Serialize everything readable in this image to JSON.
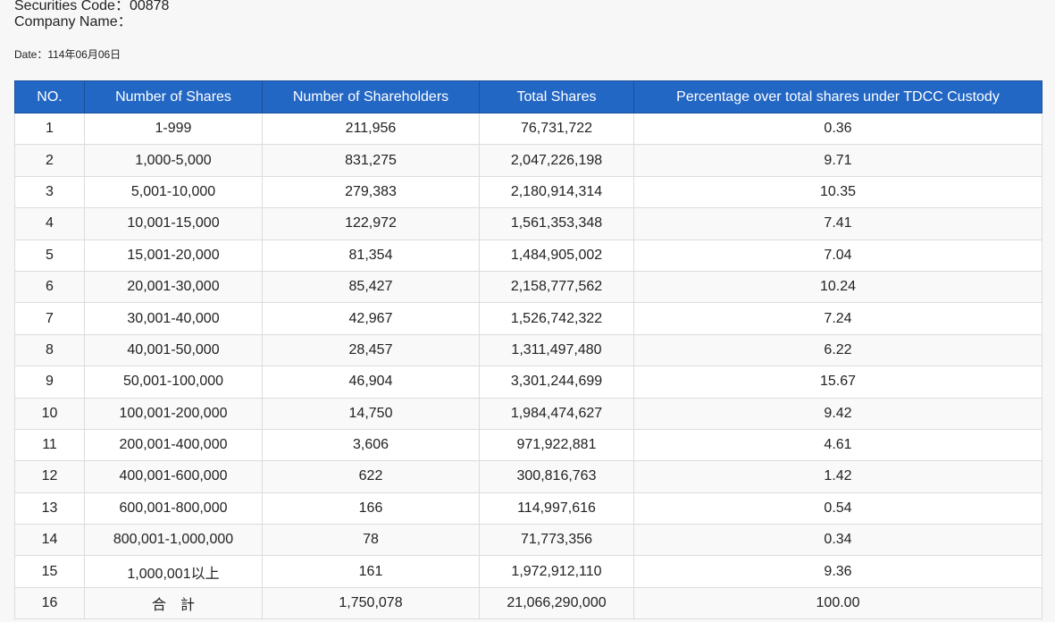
{
  "header": {
    "securities_code": "Securities Code：00878",
    "company_name": "Company Name：",
    "date": "Date：114年06月06日"
  },
  "table": {
    "columns": [
      "NO.",
      "Number of Shares",
      "Number of Shareholders",
      "Total Shares",
      "Percentage over total shares under TDCC Custody"
    ],
    "rows": [
      [
        "1",
        "1-999",
        "211,956",
        "76,731,722",
        "0.36"
      ],
      [
        "2",
        "1,000-5,000",
        "831,275",
        "2,047,226,198",
        "9.71"
      ],
      [
        "3",
        "5,001-10,000",
        "279,383",
        "2,180,914,314",
        "10.35"
      ],
      [
        "4",
        "10,001-15,000",
        "122,972",
        "1,561,353,348",
        "7.41"
      ],
      [
        "5",
        "15,001-20,000",
        "81,354",
        "1,484,905,002",
        "7.04"
      ],
      [
        "6",
        "20,001-30,000",
        "85,427",
        "2,158,777,562",
        "10.24"
      ],
      [
        "7",
        "30,001-40,000",
        "42,967",
        "1,526,742,322",
        "7.24"
      ],
      [
        "8",
        "40,001-50,000",
        "28,457",
        "1,311,497,480",
        "6.22"
      ],
      [
        "9",
        "50,001-100,000",
        "46,904",
        "3,301,244,699",
        "15.67"
      ],
      [
        "10",
        "100,001-200,000",
        "14,750",
        "1,984,474,627",
        "9.42"
      ],
      [
        "11",
        "200,001-400,000",
        "3,606",
        "971,922,881",
        "4.61"
      ],
      [
        "12",
        "400,001-600,000",
        "622",
        "300,816,763",
        "1.42"
      ],
      [
        "13",
        "600,001-800,000",
        "166",
        "114,997,616",
        "0.54"
      ],
      [
        "14",
        "800,001-1,000,000",
        "78",
        "71,773,356",
        "0.34"
      ],
      [
        "15",
        "1,000,001以上",
        "161",
        "1,972,912,110",
        "9.36"
      ],
      [
        "16",
        "合　計",
        "1,750,078",
        "21,066,290,000",
        "100.00"
      ]
    ]
  },
  "colors": {
    "header_bg": "#2367c4",
    "header_text": "#ffffff",
    "page_bg": "#f7f7f7",
    "border": "#dcdcdc"
  }
}
